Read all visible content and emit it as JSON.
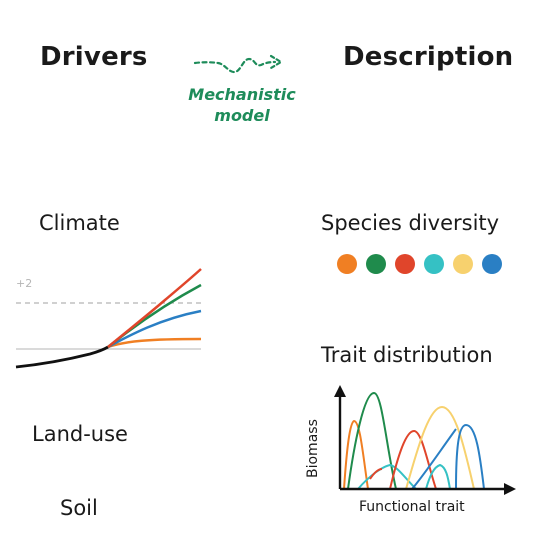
{
  "headers": {
    "drivers": "Drivers",
    "description": "Description"
  },
  "model": {
    "line1": "Mechanistic",
    "line2": "model",
    "color": "#1e8c5a"
  },
  "drivers": {
    "climate": "Climate",
    "land_use": "Land-use",
    "soil": "Soil",
    "plus_label": "+2"
  },
  "description": {
    "species_diversity": "Species diversity",
    "trait_distribution": "Trait distribution",
    "y_axis_label": "Biomass",
    "x_axis_label": "Functional trait"
  },
  "species_colors": [
    "#f07f23",
    "#1f8b4c",
    "#e0452b",
    "#35c1c4",
    "#f7d16e",
    "#2a7fc4"
  ],
  "colors": {
    "orange": "#f07f23",
    "green": "#1f8b4c",
    "red": "#e0452b",
    "cyan": "#35c1c4",
    "yellow": "#f7d16e",
    "blue": "#2a7fc4",
    "text": "#1a1a1a",
    "grid": "#b5b5b5"
  }
}
